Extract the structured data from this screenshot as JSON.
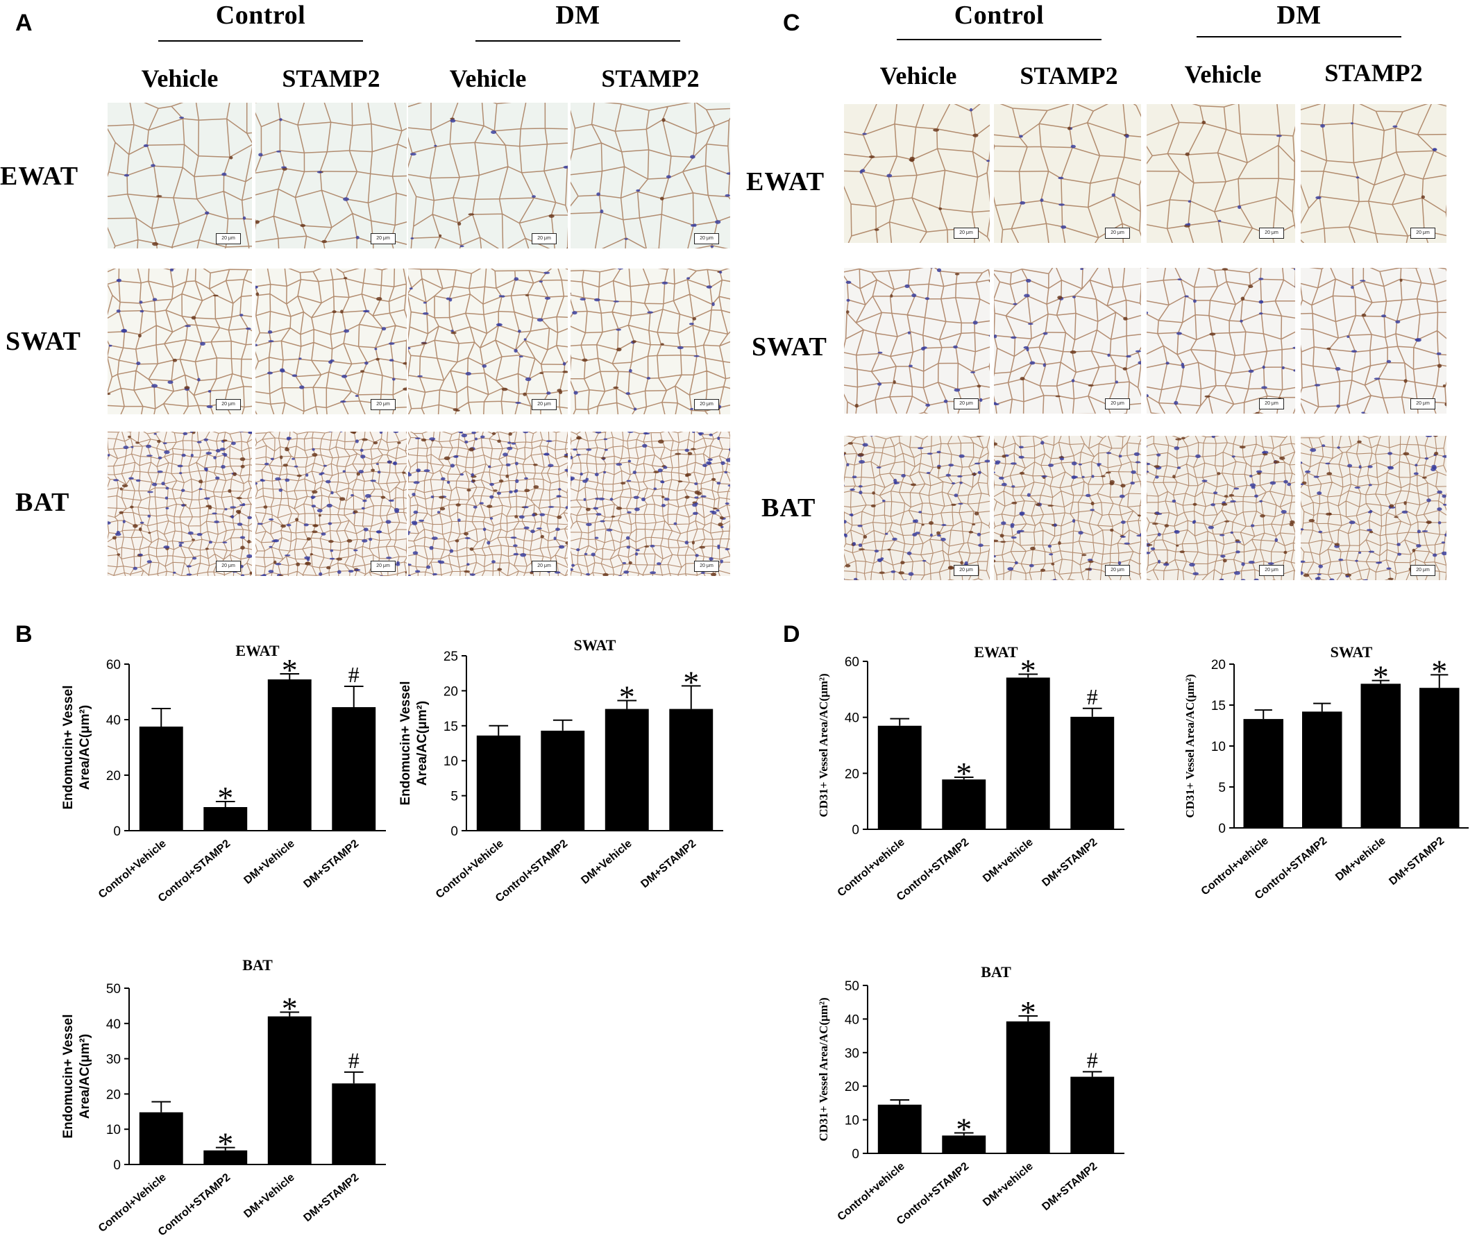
{
  "panels": {
    "A": {
      "letter": "A",
      "groups": [
        "Control",
        "DM"
      ],
      "columns": [
        "Vehicle",
        "STAMP2",
        "Vehicle",
        "STAMP2"
      ],
      "rows": [
        "EWAT",
        "SWAT",
        "BAT"
      ],
      "scale_label": "20 μm"
    },
    "C": {
      "letter": "C",
      "groups": [
        "Control",
        "DM"
      ],
      "columns": [
        "Vehicle",
        "STAMP2",
        "Vehicle",
        "STAMP2"
      ],
      "rows": [
        "EWAT",
        "SWAT",
        "BAT"
      ],
      "scale_label": "20 μm"
    },
    "B": {
      "letter": "B"
    },
    "D": {
      "letter": "D"
    }
  },
  "stain_colors": {
    "background": "#f4f2ea",
    "membrane": "#9c6a45",
    "nucleus": "#3b3f9e",
    "vessel": "#6b3a1e"
  },
  "chart_data": [
    {
      "id": "B-EWAT",
      "type": "bar",
      "title": "EWAT",
      "ylabel_lines": [
        "Endomucin+ Vessel",
        "Area/AC(μm²)"
      ],
      "categories": [
        "Control+Vehicle",
        "Control+STAMP2",
        "DM+Vehicle",
        "DM+STAMP2"
      ],
      "values": [
        37.5,
        8.5,
        54.5,
        44.5
      ],
      "errors": [
        6.5,
        2.0,
        2.0,
        7.5
      ],
      "markers": [
        "",
        "*",
        "*",
        "#"
      ],
      "ylim": [
        0,
        60
      ],
      "yticks": [
        0,
        20,
        40,
        60
      ]
    },
    {
      "id": "B-SWAT",
      "type": "bar",
      "title": "SWAT",
      "ylabel_lines": [
        "Endomucin+ Vessel",
        "Area/AC(μm²)"
      ],
      "categories": [
        "Control+Vehicle",
        "Control+STAMP2",
        "DM+Vehicle",
        "DM+STAMP2"
      ],
      "values": [
        13.6,
        14.3,
        17.4,
        17.4
      ],
      "errors": [
        1.4,
        1.5,
        1.2,
        3.3
      ],
      "markers": [
        "",
        "",
        "*",
        "*"
      ],
      "ylim": [
        0,
        25
      ],
      "yticks": [
        0,
        5,
        10,
        15,
        20,
        25
      ]
    },
    {
      "id": "B-BAT",
      "type": "bar",
      "title": "BAT",
      "ylabel_lines": [
        "Endomucin+ Vessel",
        "Area/AC(μm²)"
      ],
      "categories": [
        "Control+Vehicle",
        "Control+STAMP2",
        "DM+Vehicle",
        "DM+STAMP2"
      ],
      "values": [
        14.8,
        4.0,
        42.0,
        23.0
      ],
      "errors": [
        3.0,
        0.8,
        1.2,
        3.2
      ],
      "markers": [
        "",
        "*",
        "*",
        "#"
      ],
      "ylim": [
        0,
        50
      ],
      "yticks": [
        0,
        10,
        20,
        30,
        40,
        50
      ]
    },
    {
      "id": "D-EWAT",
      "type": "bar",
      "title": "EWAT",
      "ylabel_lines": [
        "CD31+ Vessel Area/AC(μm²)"
      ],
      "categories": [
        "Control+vehicle",
        "Control+STAMP2",
        "DM+vehicle",
        "DM+STAMP2"
      ],
      "values": [
        37.0,
        17.8,
        54.2,
        40.2
      ],
      "errors": [
        2.5,
        0.8,
        1.2,
        3.0
      ],
      "markers": [
        "",
        "*",
        "*",
        "#"
      ],
      "ylim": [
        0,
        60
      ],
      "yticks": [
        0,
        20,
        40,
        60
      ]
    },
    {
      "id": "D-SWAT",
      "type": "bar",
      "title": "SWAT",
      "ylabel_lines": [
        "CD31+ Vessel Area/AC(μm²)"
      ],
      "categories": [
        "Control+vehicle",
        "Control+STAMP2",
        "DM+vehicle",
        "DM+STAMP2"
      ],
      "values": [
        13.3,
        14.2,
        17.6,
        17.1
      ],
      "errors": [
        1.1,
        1.0,
        0.4,
        1.6
      ],
      "markers": [
        "",
        "",
        "*",
        "*"
      ],
      "ylim": [
        0,
        20
      ],
      "yticks": [
        0,
        5,
        10,
        15,
        20
      ]
    },
    {
      "id": "D-BAT",
      "type": "bar",
      "title": "BAT",
      "ylabel_lines": [
        "CD31+ Vessel Area/AC(μm²)"
      ],
      "categories": [
        "Control+vehicle",
        "Control+STAMP2",
        "DM+vehicle",
        "DM+STAMP2"
      ],
      "values": [
        14.5,
        5.3,
        39.3,
        22.8
      ],
      "errors": [
        1.4,
        0.8,
        1.6,
        1.5
      ],
      "markers": [
        "",
        "*",
        "*",
        "#"
      ],
      "ylim": [
        0,
        50
      ],
      "yticks": [
        0,
        10,
        20,
        30,
        40,
        50
      ]
    }
  ]
}
